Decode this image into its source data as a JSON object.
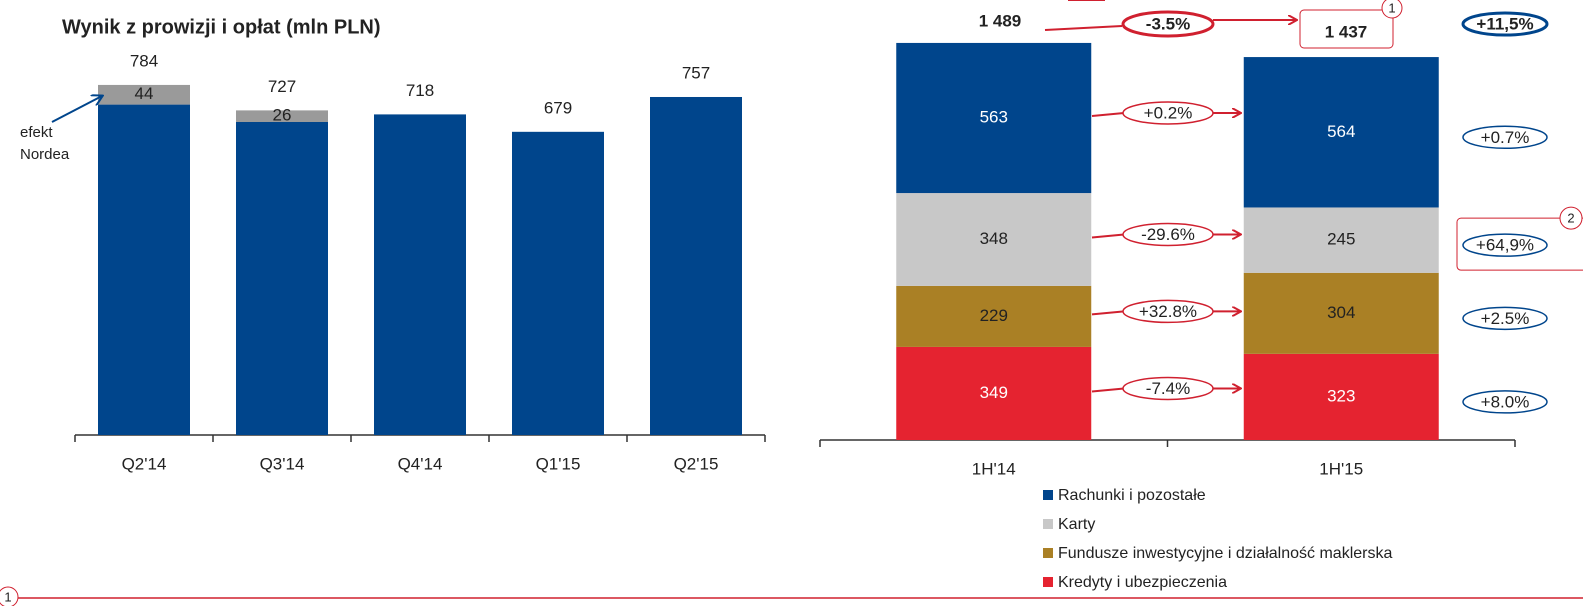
{
  "chart_data": [
    {
      "type": "bar",
      "stacked": true,
      "title": "Wynik z prowizji i opłat (mln PLN)",
      "categories": [
        "Q2'14",
        "Q3'14",
        "Q4'14",
        "Q1'15",
        "Q2'15"
      ],
      "series": [
        {
          "color": "#00458c",
          "values": [
            740,
            701,
            718,
            679,
            757
          ]
        },
        {
          "color": "#9a9a9a",
          "values": [
            44,
            26,
            null,
            null,
            null
          ]
        }
      ],
      "totals": [
        784,
        727,
        718,
        679,
        757
      ],
      "annotation": [
        "efekt",
        "Nordea"
      ],
      "ylim": [
        0,
        860
      ]
    },
    {
      "type": "bar",
      "stacked": true,
      "categories": [
        "1H'14",
        "1H'15"
      ],
      "series": [
        {
          "name": "Rachunki i pozostałe",
          "color": "#00458c",
          "values": [
            563,
            564
          ],
          "change": "+0.2%",
          "growth": "+0.7%"
        },
        {
          "name": "Karty",
          "color": "#c8c8c8",
          "values": [
            348,
            245
          ],
          "change": "-29.6%",
          "growth": "+64,9%"
        },
        {
          "name": "Fundusze inwestycyjne i działalność maklerska",
          "color": "#aa8025",
          "values": [
            229,
            304
          ],
          "change": "+32.8%",
          "growth": "+2.5%"
        },
        {
          "name": "Kredyty i ubezpieczenia",
          "color": "#e52330",
          "values": [
            349,
            323
          ],
          "change": "-7.4%",
          "growth": "+8.0%"
        }
      ],
      "totals": [
        1489,
        1437
      ],
      "total_labels": [
        "1 489",
        "1 437"
      ],
      "total_change": "-3.5%",
      "total_growth": "+11,5%",
      "footnote_marks": [
        "1",
        "2",
        "1"
      ],
      "ylim": [
        0,
        1650
      ]
    }
  ]
}
